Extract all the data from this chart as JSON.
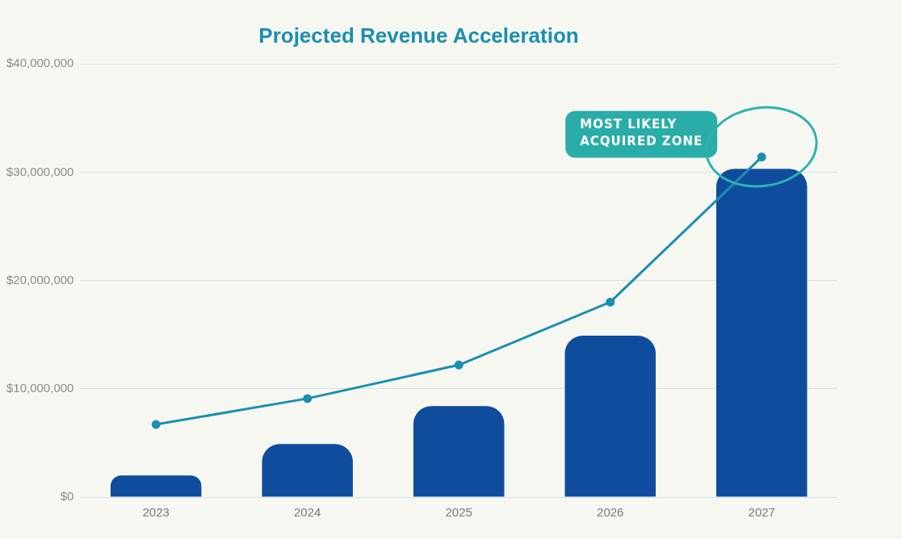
{
  "chart_data": {
    "type": "bar",
    "title": "Projected Revenue Acceleration",
    "categories": [
      "2023",
      "2024",
      "2025",
      "2026",
      "2027"
    ],
    "series": [
      {
        "color": "#0f4c9e",
        "values": [
          2000000,
          4900000,
          8400000,
          14900000,
          30300000
        ]
      },
      {
        "type": "line",
        "color": "#1a8fb0",
        "values": [
          6700000,
          9100000,
          12200000,
          18000000,
          31400000
        ]
      }
    ],
    "ylim": [
      0,
      40000000
    ],
    "yticks": [
      {
        "value": 0,
        "label": "$0"
      },
      {
        "value": 10000000,
        "label": "$10,000,000"
      },
      {
        "value": 20000000,
        "label": "$20,000,000"
      },
      {
        "value": 30000000,
        "label": "$30,000,000"
      },
      {
        "value": 40000000,
        "label": "$40,000,000"
      }
    ],
    "grid": "y",
    "legend": false,
    "marker": "circle",
    "line_style": "solid",
    "annotations": [
      "MOST LIKELY ACQUIRED ZONE"
    ]
  }
}
